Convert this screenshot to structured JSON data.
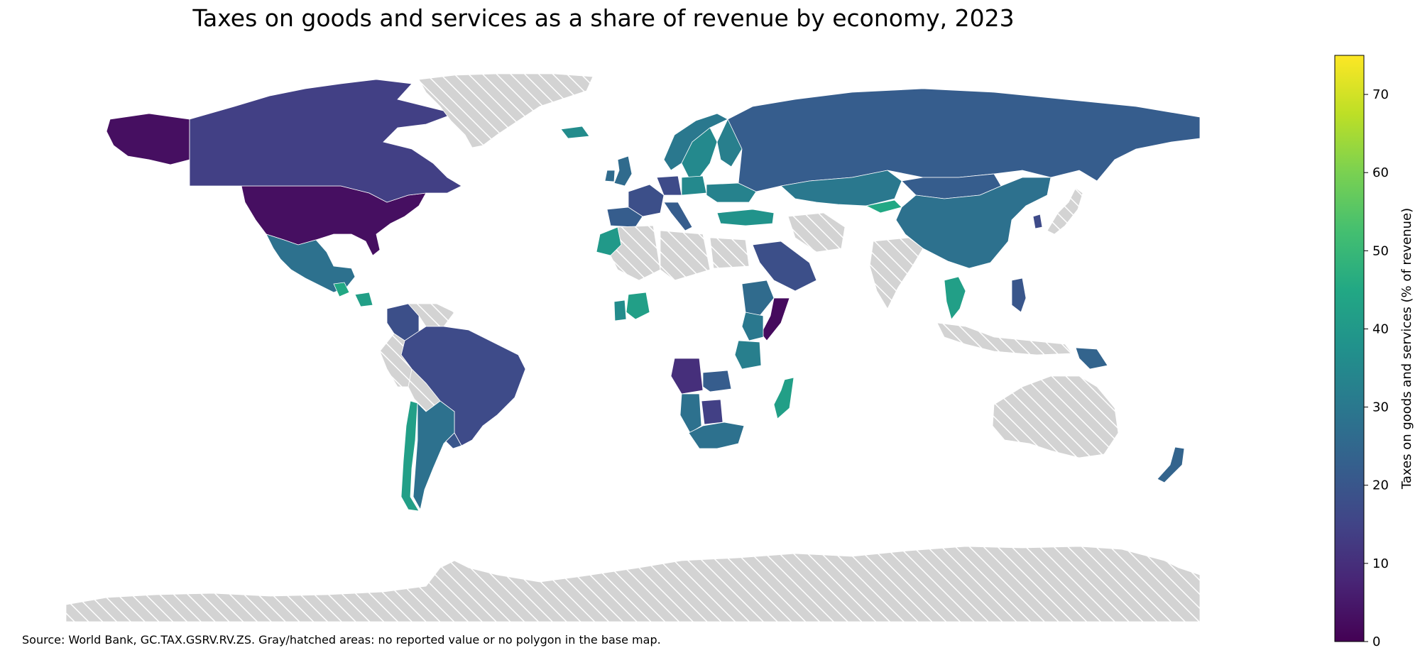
{
  "title": "Taxes on goods and services as a share of revenue by economy, 2023",
  "source_note": "Source: World Bank, GC.TAX.GSRV.RV.ZS. Gray/hatched areas: no reported value or no polygon in the base map.",
  "colorbar": {
    "label": "Taxes on goods and services (% of revenue)",
    "min": 0,
    "max": 75,
    "ticks": [
      "0",
      "10",
      "20",
      "30",
      "40",
      "50",
      "60",
      "70"
    ],
    "colormap": "viridis",
    "stops": [
      "#440154",
      "#482475",
      "#414487",
      "#355f8d",
      "#2a788e",
      "#21918c",
      "#22a884",
      "#44bf70",
      "#7ad151",
      "#bddf26",
      "#fde725"
    ]
  },
  "no_data_color": "#d3d3d3",
  "country_values": [
    {
      "name": "United States",
      "value": 3
    },
    {
      "name": "Canada",
      "value": 14
    },
    {
      "name": "Greenland",
      "value": null
    },
    {
      "name": "Mexico",
      "value": 28
    },
    {
      "name": "Guatemala",
      "value": 45
    },
    {
      "name": "Nicaragua",
      "value": 42
    },
    {
      "name": "Colombia",
      "value": 18
    },
    {
      "name": "Venezuela",
      "value": null
    },
    {
      "name": "Brazil",
      "value": 17
    },
    {
      "name": "Peru",
      "value": null
    },
    {
      "name": "Bolivia",
      "value": null
    },
    {
      "name": "Chile",
      "value": 42
    },
    {
      "name": "Argentina",
      "value": 28
    },
    {
      "name": "Uruguay",
      "value": 20
    },
    {
      "name": "Iceland",
      "value": 36
    },
    {
      "name": "Norway",
      "value": 30
    },
    {
      "name": "Sweden",
      "value": 35
    },
    {
      "name": "Finland",
      "value": 32
    },
    {
      "name": "United Kingdom",
      "value": 26
    },
    {
      "name": "Ireland",
      "value": 26
    },
    {
      "name": "France",
      "value": 18
    },
    {
      "name": "Spain",
      "value": 22
    },
    {
      "name": "Germany",
      "value": 17
    },
    {
      "name": "Italy",
      "value": 22
    },
    {
      "name": "Poland",
      "value": 35
    },
    {
      "name": "Ukraine",
      "value": 33
    },
    {
      "name": "Turkey",
      "value": 38
    },
    {
      "name": "Russia",
      "value": 22
    },
    {
      "name": "Kazakhstan",
      "value": 30
    },
    {
      "name": "Kyrgyzstan",
      "value": 45
    },
    {
      "name": "Mongolia",
      "value": 22
    },
    {
      "name": "China",
      "value": 28
    },
    {
      "name": "Japan",
      "value": null
    },
    {
      "name": "South Korea",
      "value": 17
    },
    {
      "name": "Morocco",
      "value": 40
    },
    {
      "name": "Algeria",
      "value": null
    },
    {
      "name": "Libya",
      "value": null
    },
    {
      "name": "Egypt",
      "value": null
    },
    {
      "name": "Saudi Arabia",
      "value": 18
    },
    {
      "name": "Iran",
      "value": null
    },
    {
      "name": "India",
      "value": null
    },
    {
      "name": "Thailand",
      "value": 42
    },
    {
      "name": "Philippines",
      "value": 20
    },
    {
      "name": "Indonesia",
      "value": null
    },
    {
      "name": "Papua New Guinea",
      "value": 24
    },
    {
      "name": "Australia",
      "value": null
    },
    {
      "name": "New Zealand",
      "value": 24
    },
    {
      "name": "Ethiopia",
      "value": 26
    },
    {
      "name": "Somalia",
      "value": 2
    },
    {
      "name": "Kenya",
      "value": 30
    },
    {
      "name": "Tanzania",
      "value": 32
    },
    {
      "name": "Angola",
      "value": 10
    },
    {
      "name": "Zambia",
      "value": 22
    },
    {
      "name": "Namibia",
      "value": 28
    },
    {
      "name": "Botswana",
      "value": 14
    },
    {
      "name": "South Africa",
      "value": 28
    },
    {
      "name": "Madagascar",
      "value": 42
    },
    {
      "name": "Ghana",
      "value": 36
    },
    {
      "name": "Nigeria",
      "value": 42
    },
    {
      "name": "Antarctica",
      "value": null
    }
  ]
}
